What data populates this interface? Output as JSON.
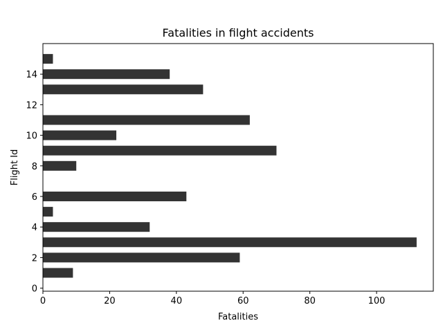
{
  "chart_data": {
    "type": "bar",
    "orientation": "horizontal",
    "title": "Fatalities in filght accidents",
    "xlabel": "Fatalities",
    "ylabel": "Flight Id",
    "xlim": [
      0,
      117
    ],
    "ylim": [
      -0.2,
      16
    ],
    "xticks": [
      0,
      20,
      40,
      60,
      80,
      100
    ],
    "yticks": [
      0,
      2,
      4,
      6,
      8,
      10,
      12,
      14
    ],
    "grid": false,
    "bar_color": "#333333",
    "flight_ids": [
      1,
      2,
      3,
      4,
      5,
      6,
      8,
      9,
      10,
      11,
      13,
      14,
      15
    ],
    "values": [
      9,
      59,
      112,
      32,
      3,
      43,
      10,
      70,
      22,
      62,
      48,
      38,
      3
    ]
  }
}
